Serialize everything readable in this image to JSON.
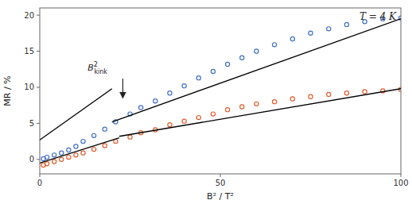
{
  "chart_data": {
    "type": "scatter",
    "title": "T = 4 K",
    "xlabel": "B² / T²",
    "ylabel": "MR / %",
    "xlim": [
      0,
      100
    ],
    "ylim": [
      -2,
      21
    ],
    "xticks": [
      0,
      50,
      100
    ],
    "yticks": [
      0,
      5,
      10,
      15,
      20
    ],
    "grid": false,
    "series": [
      {
        "type": "scatter",
        "marker": "circle",
        "color": "#4472c4",
        "x": [
          1,
          2,
          4,
          6,
          8,
          10,
          12,
          15,
          18,
          21,
          25,
          28,
          32,
          36,
          40,
          44,
          48,
          52,
          56,
          60,
          65,
          70,
          75,
          80,
          85,
          90,
          95,
          100
        ],
        "values": [
          0.1,
          0.3,
          0.6,
          0.9,
          1.3,
          1.8,
          2.5,
          3.3,
          4.2,
          5.2,
          6.3,
          7.2,
          8.1,
          9.2,
          10.2,
          11.3,
          12.2,
          13.2,
          14.1,
          15.0,
          15.9,
          16.7,
          17.5,
          18.1,
          18.7,
          19.1,
          19.5,
          19.6
        ]
      },
      {
        "type": "scatter",
        "marker": "circle",
        "color": "#e06030",
        "x": [
          1,
          2,
          4,
          6,
          8,
          10,
          12,
          15,
          18,
          21,
          25,
          28,
          32,
          36,
          40,
          44,
          48,
          52,
          56,
          60,
          65,
          70,
          75,
          80,
          85,
          90,
          95,
          100
        ],
        "values": [
          -0.8,
          -0.6,
          -0.3,
          0.0,
          0.3,
          0.6,
          0.9,
          1.4,
          1.9,
          2.5,
          3.1,
          3.7,
          4.1,
          4.8,
          5.3,
          5.8,
          6.3,
          6.9,
          7.3,
          7.7,
          8.0,
          8.4,
          8.7,
          9.0,
          9.2,
          9.4,
          9.5,
          9.7
        ]
      },
      {
        "type": "line",
        "color": "#000000",
        "x": [
          0,
          20
        ],
        "values": [
          2.7,
          9.8
        ]
      },
      {
        "type": "line",
        "color": "#000000",
        "x": [
          20,
          100
        ],
        "values": [
          5.2,
          19.5
        ]
      },
      {
        "type": "line",
        "color": "#000000",
        "x": [
          0,
          22
        ],
        "values": [
          -0.5,
          3.0
        ]
      },
      {
        "type": "line",
        "color": "#000000",
        "x": [
          22,
          100
        ],
        "values": [
          3.2,
          9.8
        ]
      }
    ],
    "annotations": [
      {
        "text": "B",
        "sub": "kink",
        "sup": "2",
        "x": 16,
        "y": 12.3,
        "arrow": {
          "x": 23,
          "y_start": 11.2,
          "y_end": 8.5
        }
      }
    ]
  }
}
